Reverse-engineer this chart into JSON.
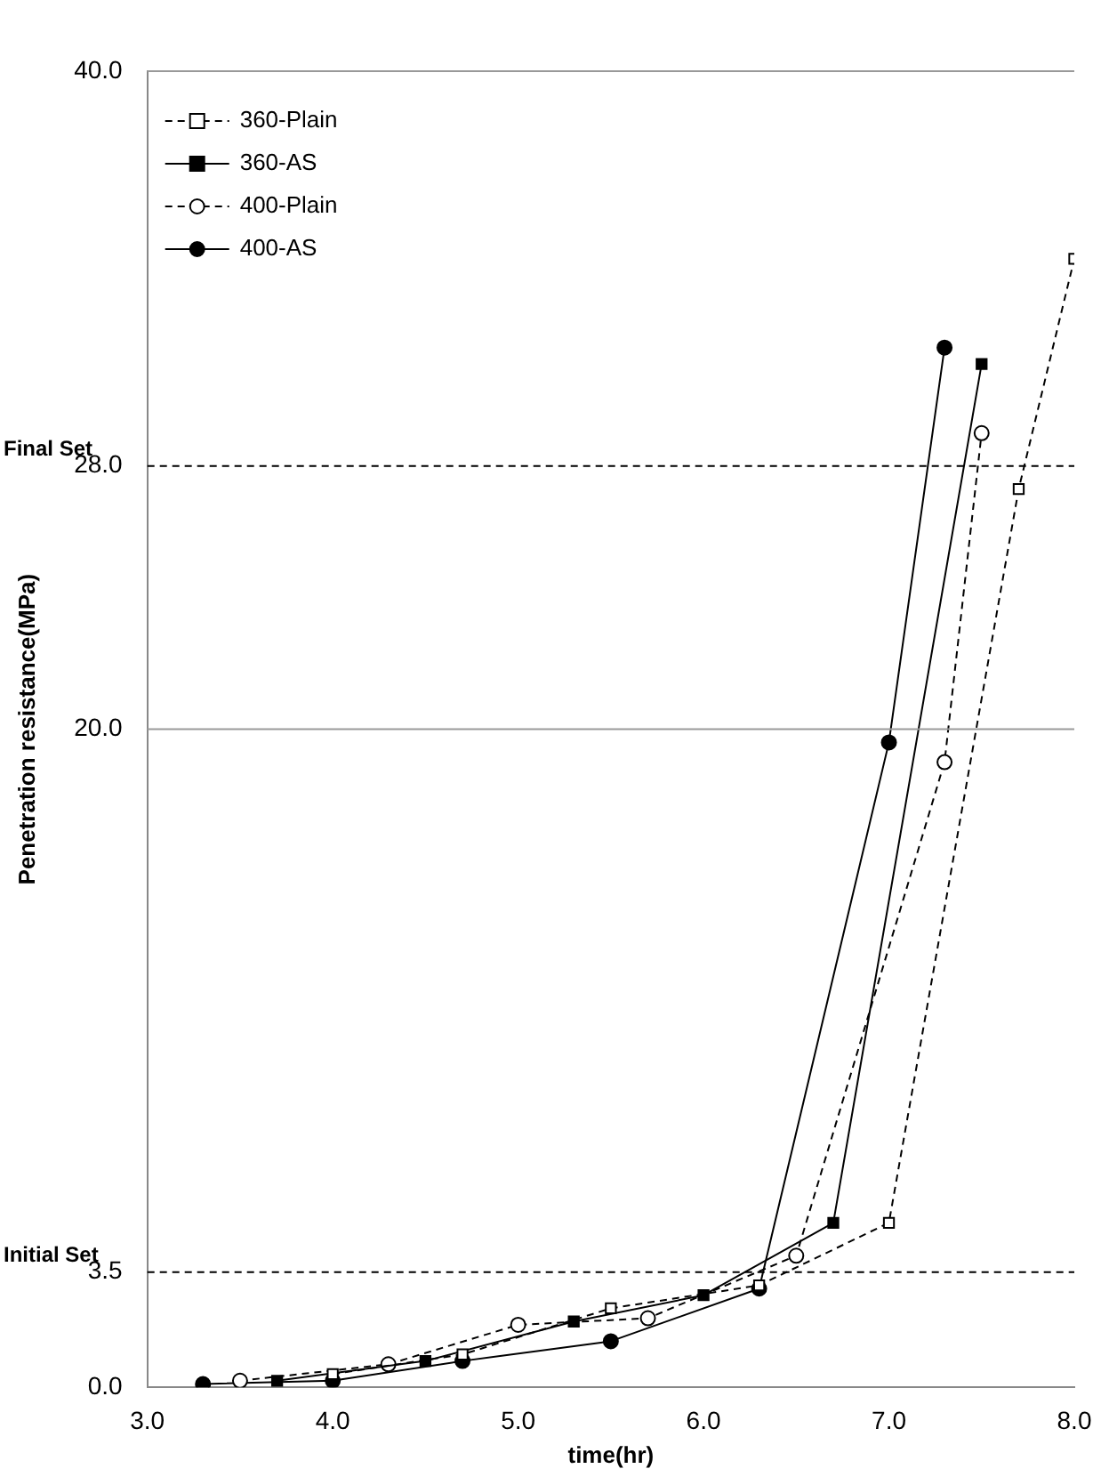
{
  "chart_data": {
    "type": "line",
    "xlabel": "time(hr)",
    "ylabel": "Penetration resistance(MPa)",
    "xlim": [
      3.0,
      8.0
    ],
    "xticks": [
      {
        "value": 3,
        "label": "3.0"
      },
      {
        "value": 4,
        "label": "4.0"
      },
      {
        "value": 5,
        "label": "5.0"
      },
      {
        "value": 6,
        "label": "6.0"
      },
      {
        "value": 7,
        "label": "7.0"
      },
      {
        "value": 8,
        "label": "8.0"
      }
    ],
    "ylim": [
      0,
      40
    ],
    "yticks": [
      {
        "value": 0,
        "label": "0.0"
      },
      3.5,
      {
        "value": 20,
        "label": "20.0"
      },
      {
        "value": 28,
        "label": "28.0"
      },
      {
        "value": 40,
        "label": "40.0"
      }
    ],
    "legend": "top left",
    "ref_lines": [
      {
        "axis": "y",
        "value": 3.5,
        "label": "Initial Set",
        "line_style": "dashed",
        "color": "#000000"
      },
      {
        "axis": "y",
        "value": 28,
        "label": "Final Set",
        "line_style": "dashed",
        "color": "#000000"
      },
      {
        "axis": "y",
        "value": 20,
        "line_style": "solid",
        "color": "#999999"
      },
      {
        "axis": "y",
        "value": 40,
        "line_style": "solid",
        "color": "#999999"
      }
    ],
    "series": [
      {
        "name": "360-Plain",
        "color": "#000000",
        "marker": "square",
        "line_style": "dashed",
        "x": [
          4.0,
          4.7,
          5.5,
          6.3,
          7.0,
          7.7,
          8.0
        ],
        "values": [
          0.4,
          1.0,
          2.4,
          3.1,
          5.0,
          27.3,
          34.3
        ]
      },
      {
        "name": "360-AS",
        "color": "#000000",
        "marker": "square",
        "line_style": "solid",
        "x": [
          3.7,
          4.5,
          5.3,
          6.0,
          6.7,
          7.5
        ],
        "values": [
          0.2,
          0.8,
          2.0,
          2.8,
          5.0,
          31.1
        ]
      },
      {
        "name": "400-Plain",
        "color": "#000000",
        "marker": "circle",
        "line_style": "dashed",
        "x": [
          3.5,
          4.3,
          5.0,
          5.7,
          6.5,
          7.3,
          7.5
        ],
        "values": [
          0.2,
          0.7,
          1.9,
          2.1,
          4.0,
          19.0,
          29.0
        ]
      },
      {
        "name": "400-AS",
        "color": "#000000",
        "marker": "circle",
        "line_style": "solid",
        "x": [
          3.3,
          4.0,
          4.7,
          5.5,
          6.3,
          7.0,
          7.3
        ],
        "values": [
          0.1,
          0.2,
          0.8,
          1.4,
          3.0,
          19.6,
          31.6
        ]
      }
    ]
  }
}
